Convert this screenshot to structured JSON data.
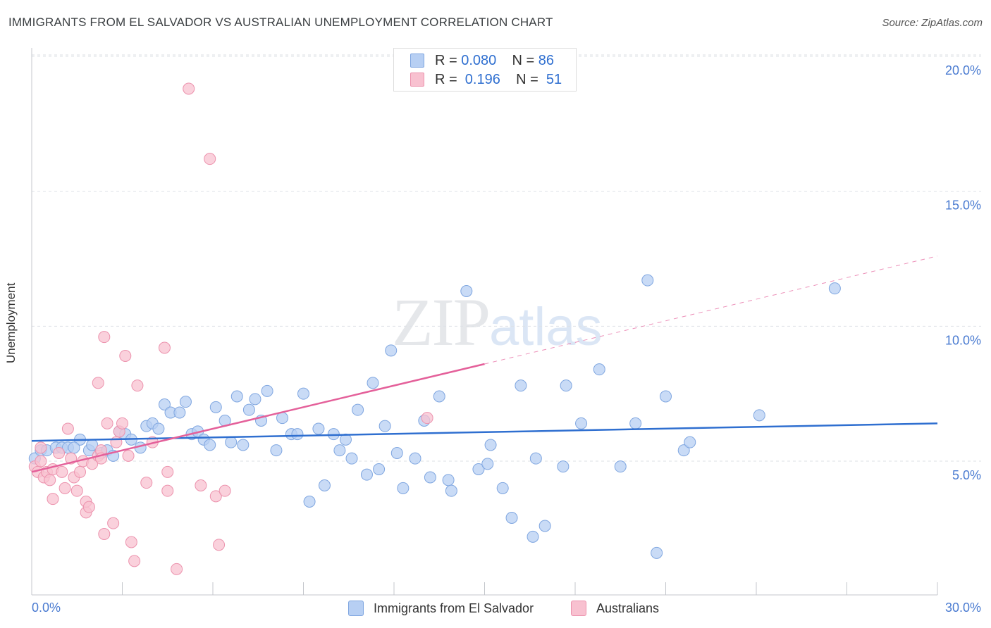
{
  "header": {
    "title": "IMMIGRANTS FROM EL SALVADOR VS AUSTRALIAN UNEMPLOYMENT CORRELATION CHART",
    "source": "Source: ZipAtlas.com"
  },
  "watermark": {
    "zip": "ZIP",
    "atlas": "atlas"
  },
  "legend_top": {
    "rows": [
      {
        "r_label": "R = ",
        "r_value": "0.080",
        "n_label": "N = ",
        "n_value": "86"
      },
      {
        "r_label": "R = ",
        "r_value": " 0.196",
        "n_label": "N = ",
        "n_value": " 51"
      }
    ]
  },
  "legend_bottom": {
    "items": [
      "Immigrants from El Salvador",
      "Australians"
    ]
  },
  "colors": {
    "blue_fill": "#b7cff3",
    "blue_stroke": "#7fa6e0",
    "blue_line": "#2f6fd0",
    "pink_fill": "#f8c1d0",
    "pink_stroke": "#ec92ad",
    "pink_line": "#e4609a",
    "grid": "#dde1e6",
    "tick_text": "#4a7bd1"
  },
  "chart_data": {
    "type": "scatter",
    "title": "IMMIGRANTS FROM EL SALVADOR VS AUSTRALIAN UNEMPLOYMENT CORRELATION CHART",
    "xlabel": "",
    "ylabel": "Unemployment",
    "xlim": [
      0,
      30
    ],
    "ylim": [
      0,
      20
    ],
    "x_tick_labels": [
      "0.0%",
      "30.0%"
    ],
    "y_ticks": [
      5,
      10,
      15,
      20
    ],
    "y_tick_labels": [
      "5.0%",
      "10.0%",
      "15.0%",
      "20.0%"
    ],
    "grid": true,
    "series": [
      {
        "name": "Immigrants from El Salvador",
        "color": "#b7cff3",
        "r": 0.08,
        "n": 86,
        "trend": {
          "x0": 0,
          "y0": 5.75,
          "x1": 30,
          "y1": 6.4
        },
        "points": [
          [
            0.1,
            5.1
          ],
          [
            0.3,
            5.4
          ],
          [
            0.5,
            5.4
          ],
          [
            0.8,
            5.5
          ],
          [
            1.0,
            5.5
          ],
          [
            1.2,
            5.5
          ],
          [
            1.6,
            5.8
          ],
          [
            1.9,
            5.4
          ],
          [
            2.0,
            5.6
          ],
          [
            2.3,
            5.3
          ],
          [
            2.5,
            5.4
          ],
          [
            2.7,
            5.2
          ],
          [
            2.9,
            6.1
          ],
          [
            3.1,
            6.0
          ],
          [
            3.3,
            5.8
          ],
          [
            3.6,
            5.5
          ],
          [
            3.8,
            6.3
          ],
          [
            4.0,
            6.4
          ],
          [
            4.2,
            6.2
          ],
          [
            4.4,
            7.1
          ],
          [
            4.6,
            6.8
          ],
          [
            4.9,
            6.8
          ],
          [
            5.1,
            7.2
          ],
          [
            5.3,
            6.0
          ],
          [
            5.5,
            6.1
          ],
          [
            5.7,
            5.8
          ],
          [
            5.9,
            5.6
          ],
          [
            6.1,
            7.0
          ],
          [
            6.4,
            6.5
          ],
          [
            6.6,
            5.7
          ],
          [
            6.8,
            7.4
          ],
          [
            7.0,
            5.6
          ],
          [
            7.2,
            6.9
          ],
          [
            7.4,
            7.3
          ],
          [
            7.6,
            6.5
          ],
          [
            7.8,
            7.6
          ],
          [
            8.1,
            5.4
          ],
          [
            8.3,
            6.6
          ],
          [
            8.6,
            6.0
          ],
          [
            8.8,
            6.0
          ],
          [
            9.0,
            7.5
          ],
          [
            9.2,
            3.5
          ],
          [
            9.5,
            6.2
          ],
          [
            9.7,
            4.1
          ],
          [
            10.0,
            6.0
          ],
          [
            10.2,
            5.4
          ],
          [
            10.4,
            5.8
          ],
          [
            10.6,
            5.1
          ],
          [
            10.8,
            6.9
          ],
          [
            11.1,
            4.5
          ],
          [
            11.3,
            7.9
          ],
          [
            11.5,
            4.7
          ],
          [
            11.7,
            6.3
          ],
          [
            11.9,
            9.1
          ],
          [
            12.1,
            5.3
          ],
          [
            12.3,
            4.0
          ],
          [
            12.7,
            5.1
          ],
          [
            13.0,
            6.5
          ],
          [
            13.2,
            4.4
          ],
          [
            13.5,
            7.4
          ],
          [
            13.8,
            4.3
          ],
          [
            13.9,
            3.9
          ],
          [
            14.4,
            11.3
          ],
          [
            14.8,
            4.7
          ],
          [
            15.1,
            4.9
          ],
          [
            15.2,
            5.6
          ],
          [
            15.6,
            4.0
          ],
          [
            15.9,
            2.9
          ],
          [
            16.2,
            7.8
          ],
          [
            16.6,
            2.2
          ],
          [
            16.7,
            5.1
          ],
          [
            17.0,
            2.6
          ],
          [
            17.6,
            4.8
          ],
          [
            17.7,
            7.8
          ],
          [
            18.2,
            6.4
          ],
          [
            18.8,
            8.4
          ],
          [
            19.5,
            4.8
          ],
          [
            20.0,
            6.4
          ],
          [
            20.4,
            11.7
          ],
          [
            20.7,
            1.6
          ],
          [
            21.0,
            7.4
          ],
          [
            21.6,
            5.4
          ],
          [
            21.8,
            5.7
          ],
          [
            24.1,
            6.7
          ],
          [
            26.6,
            11.4
          ],
          [
            1.4,
            5.5
          ]
        ]
      },
      {
        "name": "Australians",
        "color": "#f8c1d0",
        "r": 0.196,
        "n": 51,
        "trend": {
          "x0": 0,
          "y0": 4.6,
          "x1": 15,
          "y1": 8.6,
          "x_dash_end": 30,
          "y_dash_end": 12.6
        },
        "points": [
          [
            0.1,
            4.8
          ],
          [
            0.2,
            4.6
          ],
          [
            0.3,
            5.5
          ],
          [
            0.4,
            4.4
          ],
          [
            0.5,
            4.6
          ],
          [
            0.6,
            4.3
          ],
          [
            0.7,
            4.7
          ],
          [
            0.7,
            3.6
          ],
          [
            0.9,
            5.3
          ],
          [
            1.0,
            4.6
          ],
          [
            1.1,
            4.0
          ],
          [
            1.2,
            6.2
          ],
          [
            1.3,
            5.1
          ],
          [
            1.4,
            4.4
          ],
          [
            1.5,
            3.9
          ],
          [
            1.6,
            4.6
          ],
          [
            1.7,
            5.0
          ],
          [
            1.8,
            3.1
          ],
          [
            1.8,
            3.5
          ],
          [
            1.9,
            3.3
          ],
          [
            2.0,
            4.9
          ],
          [
            2.2,
            5.2
          ],
          [
            2.2,
            7.9
          ],
          [
            2.3,
            5.4
          ],
          [
            2.3,
            5.1
          ],
          [
            2.4,
            2.3
          ],
          [
            2.4,
            9.6
          ],
          [
            2.5,
            6.4
          ],
          [
            2.7,
            2.7
          ],
          [
            2.8,
            5.7
          ],
          [
            2.9,
            6.1
          ],
          [
            3.0,
            6.4
          ],
          [
            3.1,
            8.9
          ],
          [
            3.2,
            5.2
          ],
          [
            3.3,
            2.0
          ],
          [
            3.4,
            1.3
          ],
          [
            3.5,
            7.8
          ],
          [
            3.8,
            4.2
          ],
          [
            4.0,
            5.7
          ],
          [
            4.4,
            9.2
          ],
          [
            4.5,
            4.6
          ],
          [
            4.5,
            3.9
          ],
          [
            4.8,
            1.0
          ],
          [
            5.2,
            18.8
          ],
          [
            5.6,
            4.1
          ],
          [
            5.9,
            16.2
          ],
          [
            6.1,
            3.7
          ],
          [
            6.2,
            1.9
          ],
          [
            6.4,
            3.9
          ],
          [
            13.1,
            6.6
          ],
          [
            0.3,
            5.0
          ]
        ]
      }
    ]
  },
  "axes": {
    "ylabel": "Unemployment",
    "x_left_label": "0.0%",
    "x_right_label": "30.0%"
  }
}
